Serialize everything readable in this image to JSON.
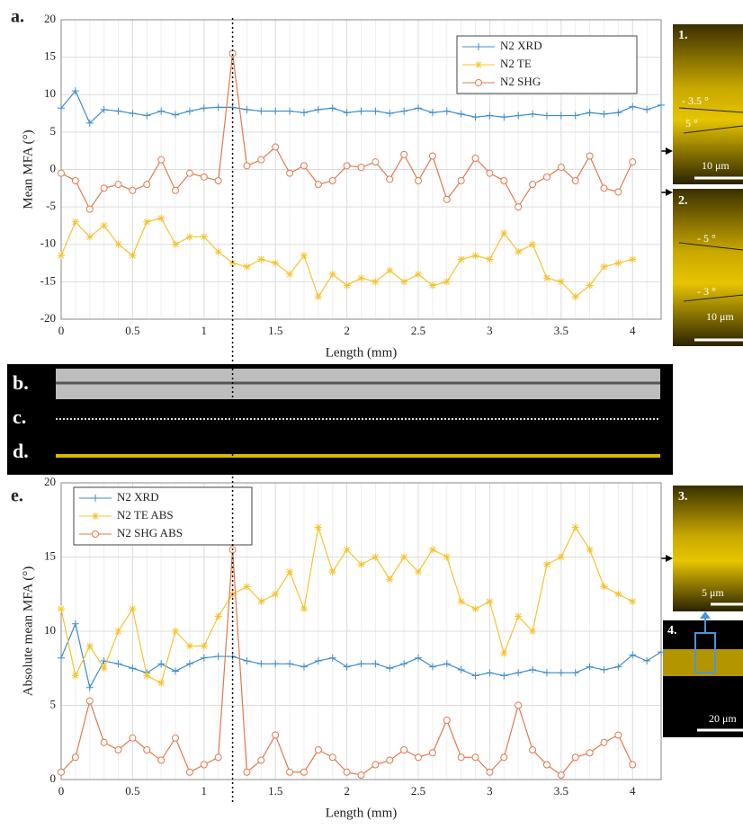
{
  "chart_data": [
    {
      "type": "line",
      "label": "a.",
      "xlabel": "Length (mm)",
      "ylabel": "Mean MFA (°)",
      "xlim": [
        0,
        4.2
      ],
      "ylim": [
        -20,
        20
      ],
      "xticks": [
        0,
        0.5,
        1,
        1.5,
        2,
        2.5,
        3,
        3.5,
        4
      ],
      "yticks": [
        -20,
        -15,
        -10,
        -5,
        0,
        5,
        10,
        15,
        20
      ],
      "grid": true,
      "legend": "upper right",
      "series": [
        {
          "name": "N2 XRD",
          "color": "#3d8ccb",
          "marker": "plus",
          "x": [
            0,
            0.1,
            0.2,
            0.3,
            0.4,
            0.5,
            0.6,
            0.7,
            0.8,
            0.9,
            1,
            1.1,
            1.2,
            1.3,
            1.4,
            1.5,
            1.6,
            1.7,
            1.8,
            1.9,
            2,
            2.1,
            2.2,
            2.3,
            2.4,
            2.5,
            2.6,
            2.7,
            2.8,
            2.9,
            3,
            3.1,
            3.2,
            3.3,
            3.4,
            3.5,
            3.6,
            3.7,
            3.8,
            3.9,
            4,
            4.1,
            4.2
          ],
          "values": [
            8.2,
            10.5,
            6.2,
            8,
            7.8,
            7.5,
            7.2,
            7.8,
            7.3,
            7.8,
            8.2,
            8.3,
            8.3,
            8,
            7.8,
            7.8,
            7.8,
            7.6,
            8,
            8.2,
            7.6,
            7.8,
            7.8,
            7.5,
            7.8,
            8.2,
            7.6,
            7.8,
            7.4,
            7,
            7.2,
            7,
            7.2,
            7.4,
            7.2,
            7.2,
            7.2,
            7.6,
            7.4,
            7.6,
            8.4,
            8,
            8.6
          ]
        },
        {
          "name": "N2 TE",
          "color": "#f5c330",
          "marker": "star",
          "x": [
            0,
            0.1,
            0.2,
            0.3,
            0.4,
            0.5,
            0.6,
            0.7,
            0.8,
            0.9,
            1,
            1.1,
            1.2,
            1.3,
            1.4,
            1.5,
            1.6,
            1.7,
            1.8,
            1.9,
            2,
            2.1,
            2.2,
            2.3,
            2.4,
            2.5,
            2.6,
            2.7,
            2.8,
            2.9,
            3,
            3.1,
            3.2,
            3.3,
            3.4,
            3.5,
            3.6,
            3.7,
            3.8,
            3.9,
            4
          ],
          "values": [
            -11.5,
            -7,
            -9,
            -7.5,
            -10,
            -11.5,
            -7,
            -6.5,
            -10,
            -9,
            -9,
            -11,
            -12.5,
            -13,
            -12,
            -12.5,
            -14,
            -11.5,
            -17,
            -14,
            -15.5,
            -14.5,
            -15,
            -13.5,
            -15,
            -14,
            -15.5,
            -15,
            -12,
            -11.5,
            -12,
            -8.5,
            -11,
            -10,
            -14.5,
            -15,
            -17,
            -15.5,
            -13,
            -12.5,
            -12
          ]
        },
        {
          "name": "N2 SHG",
          "color": "#e2794c",
          "marker": "circle",
          "x": [
            0,
            0.1,
            0.2,
            0.3,
            0.4,
            0.5,
            0.6,
            0.7,
            0.8,
            0.9,
            1,
            1.1,
            1.2,
            1.3,
            1.4,
            1.5,
            1.6,
            1.7,
            1.8,
            1.9,
            2,
            2.1,
            2.2,
            2.3,
            2.4,
            2.5,
            2.6,
            2.7,
            2.8,
            2.9,
            3,
            3.1,
            3.2,
            3.3,
            3.4,
            3.5,
            3.6,
            3.7,
            3.8,
            3.9,
            4
          ],
          "values": [
            -0.5,
            -1.5,
            -5.3,
            -2.5,
            -2,
            -2.8,
            -2,
            1.3,
            -2.8,
            -0.5,
            -1,
            -1.5,
            15.5,
            0.5,
            1.3,
            3,
            -0.5,
            0.5,
            -2,
            -1.5,
            0.5,
            0.3,
            1,
            -1.3,
            2,
            -1.5,
            1.8,
            -4,
            -1.5,
            1.5,
            -0.5,
            -1.5,
            -5,
            -2,
            -1,
            0.3,
            -1.5,
            1.8,
            -2.5,
            -3,
            1
          ]
        }
      ]
    },
    {
      "type": "line",
      "label": "e.",
      "xlabel": "Length (mm)",
      "ylabel": "Absolute mean MFA (°)",
      "xlim": [
        0,
        4.2
      ],
      "ylim": [
        0,
        20
      ],
      "xticks": [
        0,
        0.5,
        1,
        1.5,
        2,
        2.5,
        3,
        3.5,
        4
      ],
      "yticks": [
        0,
        5,
        10,
        15,
        20
      ],
      "grid": true,
      "legend": "upper left",
      "series": [
        {
          "name": "N2 XRD",
          "color": "#3d8ccb",
          "marker": "plus",
          "x": [
            0,
            0.1,
            0.2,
            0.3,
            0.4,
            0.5,
            0.6,
            0.7,
            0.8,
            0.9,
            1,
            1.1,
            1.2,
            1.3,
            1.4,
            1.5,
            1.6,
            1.7,
            1.8,
            1.9,
            2,
            2.1,
            2.2,
            2.3,
            2.4,
            2.5,
            2.6,
            2.7,
            2.8,
            2.9,
            3,
            3.1,
            3.2,
            3.3,
            3.4,
            3.5,
            3.6,
            3.7,
            3.8,
            3.9,
            4,
            4.1,
            4.2
          ],
          "values": [
            8.2,
            10.5,
            6.2,
            8,
            7.8,
            7.5,
            7.2,
            7.8,
            7.3,
            7.8,
            8.2,
            8.3,
            8.3,
            8,
            7.8,
            7.8,
            7.8,
            7.6,
            8,
            8.2,
            7.6,
            7.8,
            7.8,
            7.5,
            7.8,
            8.2,
            7.6,
            7.8,
            7.4,
            7,
            7.2,
            7,
            7.2,
            7.4,
            7.2,
            7.2,
            7.2,
            7.6,
            7.4,
            7.6,
            8.4,
            8,
            8.6
          ]
        },
        {
          "name": "N2 TE ABS",
          "color": "#f5c330",
          "marker": "star",
          "x": [
            0,
            0.1,
            0.2,
            0.3,
            0.4,
            0.5,
            0.6,
            0.7,
            0.8,
            0.9,
            1,
            1.1,
            1.2,
            1.3,
            1.4,
            1.5,
            1.6,
            1.7,
            1.8,
            1.9,
            2,
            2.1,
            2.2,
            2.3,
            2.4,
            2.5,
            2.6,
            2.7,
            2.8,
            2.9,
            3,
            3.1,
            3.2,
            3.3,
            3.4,
            3.5,
            3.6,
            3.7,
            3.8,
            3.9,
            4
          ],
          "values": [
            11.5,
            7,
            9,
            7.5,
            10,
            11.5,
            7,
            6.5,
            10,
            9,
            9,
            11,
            12.5,
            13,
            12,
            12.5,
            14,
            11.5,
            17,
            14,
            15.5,
            14.5,
            15,
            13.5,
            15,
            14,
            15.5,
            15,
            12,
            11.5,
            12,
            8.5,
            11,
            10,
            14.5,
            15,
            17,
            15.5,
            13,
            12.5,
            12
          ]
        },
        {
          "name": "N2 SHG ABS",
          "color": "#e2794c",
          "marker": "circle",
          "x": [
            0,
            0.1,
            0.2,
            0.3,
            0.4,
            0.5,
            0.6,
            0.7,
            0.8,
            0.9,
            1,
            1.1,
            1.2,
            1.3,
            1.4,
            1.5,
            1.6,
            1.7,
            1.8,
            1.9,
            2,
            2.1,
            2.2,
            2.3,
            2.4,
            2.5,
            2.6,
            2.7,
            2.8,
            2.9,
            3,
            3.1,
            3.2,
            3.3,
            3.4,
            3.5,
            3.6,
            3.7,
            3.8,
            3.9,
            4
          ],
          "values": [
            0.5,
            1.5,
            5.3,
            2.5,
            2,
            2.8,
            2,
            1.3,
            2.8,
            0.5,
            1,
            1.5,
            15.5,
            0.5,
            1.3,
            3,
            0.5,
            0.5,
            2,
            1.5,
            0.5,
            0.3,
            1,
            1.3,
            2,
            1.5,
            1.8,
            4,
            1.5,
            1.5,
            0.5,
            1.5,
            5,
            2,
            1,
            0.3,
            1.5,
            1.8,
            2.5,
            3,
            1
          ]
        }
      ]
    }
  ],
  "images": {
    "b": "b.",
    "c": "c.",
    "d": "d.",
    "p1": {
      "label": "1.",
      "angle1": "- 3.5 °",
      "angle2": "5 °",
      "scale": "10 μm"
    },
    "p2": {
      "label": "2.",
      "angle1": "- 5 °",
      "angle2": "- 3 °",
      "scale": "10 μm"
    },
    "p3": {
      "label": "3.",
      "scale": "5 μm"
    },
    "p4": {
      "label": "4.",
      "scale": "20 μm"
    }
  }
}
